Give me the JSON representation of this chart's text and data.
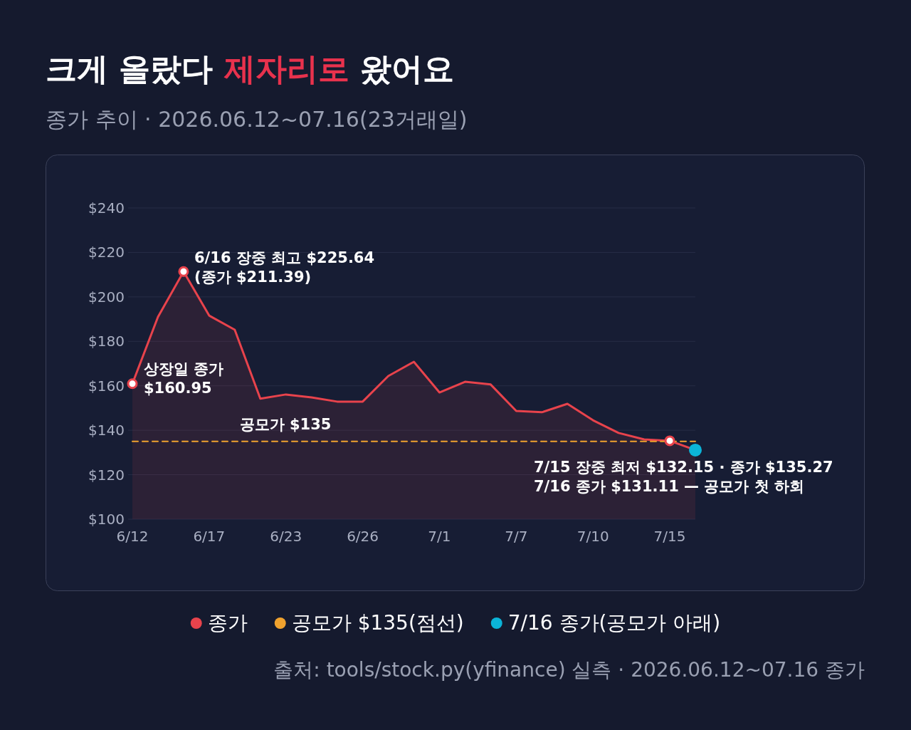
{
  "chart_data": {
    "type": "area",
    "title": "크게 올랐다 **제자리로** 왔어요",
    "subtitle": "종가 추이 · 2026.06.12~07.16(23거래일)",
    "categories": [
      "6/12",
      null,
      null,
      "6/17",
      null,
      null,
      "6/23",
      null,
      null,
      "6/26",
      null,
      null,
      "7/1",
      null,
      null,
      "7/7",
      null,
      null,
      "7/10",
      null,
      null,
      "7/15",
      null
    ],
    "series": [
      {
        "name": "종가",
        "color": "#e8434c",
        "values": [
          160.95,
          191,
          211.39,
          191.6,
          185.2,
          154.2,
          156.1,
          154.8,
          152.9,
          152.9,
          164.4,
          170.8,
          157,
          161.8,
          160.6,
          148.7,
          148.1,
          151.9,
          144.5,
          138.8,
          135.9,
          135.27,
          131.11
        ]
      },
      {
        "type": "line",
        "name": "공모가 $135(점선)",
        "color": "#f0a22e",
        "line_style": "dashed",
        "values": [
          135,
          135,
          135,
          135,
          135,
          135,
          135,
          135,
          135,
          135,
          135,
          135,
          135,
          135,
          135,
          135,
          135,
          135,
          135,
          135,
          135,
          135,
          135
        ]
      },
      {
        "type": "scatter",
        "marker": "circle",
        "color": "#e8434c",
        "values": [
          160.95,
          null,
          211.39,
          null,
          null,
          null,
          null,
          null,
          null,
          null,
          null,
          null,
          null,
          null,
          null,
          null,
          null,
          null,
          null,
          null,
          null,
          135.27,
          null
        ]
      },
      {
        "type": "scatter",
        "marker": "circle",
        "name": "7/16 종가(공모가 아래)",
        "color": "#0bb4d8",
        "values": [
          null,
          null,
          null,
          null,
          null,
          null,
          null,
          null,
          null,
          null,
          null,
          null,
          null,
          null,
          null,
          null,
          null,
          null,
          null,
          null,
          null,
          null,
          131.11
        ]
      }
    ],
    "ylim": [
      100,
      240
    ],
    "yticks": [
      {
        "value": 100,
        "label": "$100"
      },
      {
        "value": 120,
        "label": "$120"
      },
      {
        "value": 140,
        "label": "$140"
      },
      {
        "value": 160,
        "label": "$160"
      },
      {
        "value": 180,
        "label": "$180"
      },
      {
        "value": 200,
        "label": "$200"
      },
      {
        "value": 220,
        "label": "$220"
      },
      {
        "value": 240,
        "label": "$240"
      }
    ],
    "grid": "y",
    "legend": "bottom",
    "annotations": [
      "6/16 장중 최고 $225.64\n(종가 $211.39)",
      "상장일 종가\n$160.95",
      {
        "text": "공모가 $135",
        "y": 135
      },
      "7/15 장중 최저 $132.15 · 종가 $135.27\n7/16 종가 $131.11 — 공모가 첫 하회",
      "출처: tools/stock.py(yfinance) 실측 · 2026.06.12~07.16 종가"
    ]
  }
}
